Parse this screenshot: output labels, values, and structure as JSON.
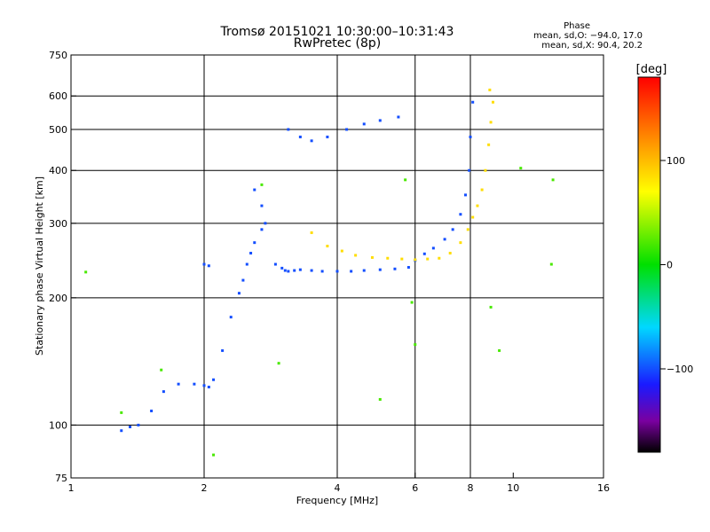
{
  "header": {
    "title": "Tromsø 20151021 10:30:00–10:31:43",
    "subtitle": "RwPretec (8p)"
  },
  "phase_stats": {
    "heading": "Phase",
    "line_o": "mean, sd,O: −94.0, 17.0",
    "line_x": "mean, sd,X:  90.4, 20.2"
  },
  "colorbar": {
    "unit_label": "[deg]",
    "min": -180,
    "max": 180,
    "ticks": [
      {
        "value": 100,
        "label": "100"
      },
      {
        "value": 0,
        "label": "0"
      },
      {
        "value": -100,
        "label": "−100"
      }
    ],
    "stops": [
      {
        "value": -180,
        "color": "#000000"
      },
      {
        "value": -150,
        "color": "#7a00a0"
      },
      {
        "value": -115,
        "color": "#1a1aff"
      },
      {
        "value": -60,
        "color": "#00d8ff"
      },
      {
        "value": 0,
        "color": "#00e000"
      },
      {
        "value": 70,
        "color": "#ffff00"
      },
      {
        "value": 115,
        "color": "#ff9a00"
      },
      {
        "value": 180,
        "color": "#ff0000"
      }
    ]
  },
  "chart_data": {
    "type": "scatter",
    "xlabel": "Frequency [MHz]",
    "ylabel": "Stationary phase Virtual Height [km]",
    "x_scale": "log",
    "y_scale": "log",
    "xlim": [
      1,
      16
    ],
    "ylim": [
      75,
      750
    ],
    "grid": true,
    "x_ticks": [
      {
        "value": 1,
        "label": "1"
      },
      {
        "value": 2,
        "label": "2"
      },
      {
        "value": 4,
        "label": "4"
      },
      {
        "value": 6,
        "label": "6"
      },
      {
        "value": 8,
        "label": "8"
      },
      {
        "value": 10,
        "label": "10"
      },
      {
        "value": 16,
        "label": "16"
      }
    ],
    "y_ticks": [
      {
        "value": 75,
        "label": "75"
      },
      {
        "value": 100,
        "label": "100"
      },
      {
        "value": 200,
        "label": "200"
      },
      {
        "value": 300,
        "label": "300"
      },
      {
        "value": 400,
        "label": "400"
      },
      {
        "value": 500,
        "label": "500"
      },
      {
        "value": 600,
        "label": "600"
      },
      {
        "value": 750,
        "label": "750"
      }
    ],
    "x_grid": [
      2,
      4,
      6,
      8
    ],
    "y_grid": [
      100,
      200,
      300,
      400,
      500,
      600
    ],
    "series": [
      {
        "mode": "O",
        "phase_deg": -100,
        "x": [
          1.3,
          1.36,
          1.42,
          1.52,
          1.62,
          1.75,
          1.9,
          2.0,
          2.05,
          2.1,
          2.2,
          2.3,
          2.4,
          2.45,
          2.5,
          2.55,
          2.6,
          2.7,
          2.75,
          2.9,
          3.0,
          3.05,
          3.1,
          3.2,
          3.3,
          3.5,
          3.7,
          4.0,
          4.3,
          4.6,
          5.0,
          5.4,
          5.8,
          6.0,
          6.3,
          6.6,
          7.0,
          7.3,
          7.6,
          7.8,
          7.95,
          8.0,
          8.1,
          3.1,
          3.3,
          3.5,
          3.8,
          4.2,
          4.6,
          5.0,
          5.5,
          2.0,
          2.05,
          2.6,
          2.7
        ],
        "y": [
          97,
          99,
          100,
          108,
          120,
          125,
          125,
          124,
          123,
          128,
          150,
          180,
          205,
          220,
          240,
          255,
          270,
          290,
          300,
          240,
          235,
          232,
          231,
          232,
          233,
          232,
          231,
          231,
          231,
          232,
          233,
          234,
          236,
          245,
          254,
          262,
          275,
          290,
          315,
          350,
          400,
          480,
          580,
          500,
          480,
          470,
          480,
          500,
          515,
          525,
          535,
          240,
          238,
          360,
          330
        ]
      },
      {
        "mode": "X",
        "phase_deg": 85,
        "x": [
          3.5,
          3.8,
          4.1,
          4.4,
          4.8,
          5.2,
          5.6,
          6.0,
          6.4,
          6.8,
          7.2,
          7.6,
          7.9,
          8.1,
          8.3,
          8.5,
          8.65,
          8.8,
          8.9,
          9.0,
          8.85
        ],
        "y": [
          285,
          265,
          258,
          252,
          249,
          248,
          247,
          246,
          247,
          248,
          255,
          270,
          290,
          310,
          330,
          360,
          400,
          460,
          520,
          580,
          620
        ]
      },
      {
        "mode": "scatter",
        "phase_deg": 20,
        "x": [
          1.08,
          1.3,
          1.6,
          2.7,
          2.95,
          5.0,
          5.7,
          5.9,
          6.0,
          8.9,
          9.3,
          10.4,
          12.2,
          12.3,
          2.1
        ],
        "y": [
          230,
          107,
          135,
          370,
          140,
          115,
          380,
          195,
          155,
          190,
          150,
          405,
          240,
          380,
          85
        ]
      }
    ]
  }
}
